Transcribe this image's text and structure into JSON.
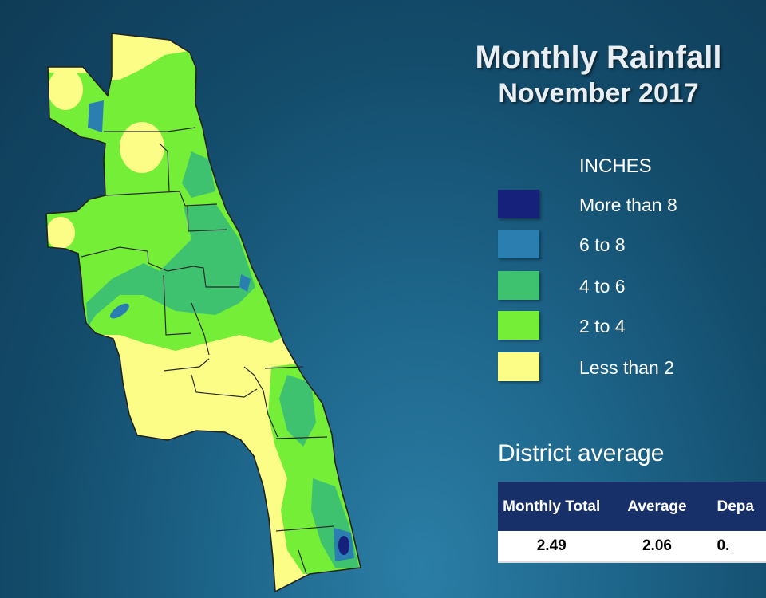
{
  "title": {
    "line1": "Monthly Rainfall",
    "line2": "November 2017"
  },
  "legend": {
    "heading": "INCHES",
    "items": [
      {
        "label": "More than 8",
        "color": "#15217a"
      },
      {
        "label": "6 to 8",
        "color": "#2a7eb0"
      },
      {
        "label": "4 to 6",
        "color": "#3fc270"
      },
      {
        "label": "2 to 4",
        "color": "#75ee38"
      },
      {
        "label": "Less than 2",
        "color": "#fbfd86"
      }
    ]
  },
  "district": {
    "heading": "District average",
    "columns": [
      "Monthly Total",
      "Average",
      "Depa"
    ],
    "values": [
      "2.49",
      "2.06",
      "0."
    ]
  },
  "map": {
    "region": "district",
    "palette": {
      "outline": "#222222",
      "county_lines": "#2a2a2a"
    }
  }
}
